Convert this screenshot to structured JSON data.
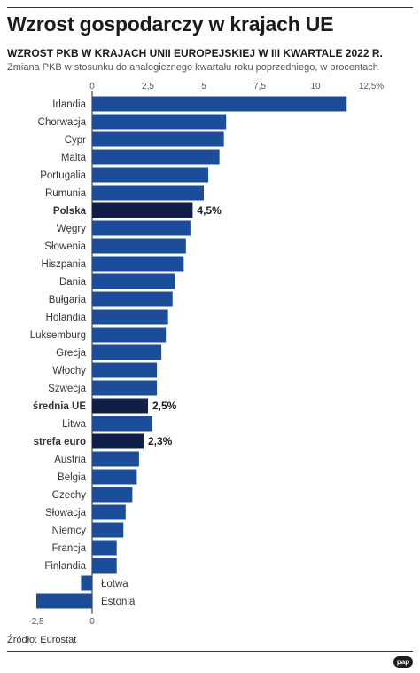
{
  "header": {
    "title": "Wzrost gospodarczy w krajach UE",
    "subtitle": "WZROST PKB W KRAJACH UNII EUROPEJSKIEJ W III KWARTALE 2022 R.",
    "description": "Zmiana PKB w stosunku do analogicznego kwartału roku poprzedniego, w procentach"
  },
  "footer": {
    "source": "Źródło: Eurostat",
    "logo": "pap"
  },
  "colors": {
    "bar": "#1c4d9a",
    "highlight": "#0f1f47",
    "axis": "#222222",
    "tick_text": "#555555"
  },
  "chart_data": {
    "type": "bar",
    "orientation": "horizontal",
    "title": "WZROST PKB W KRAJACH UNII EUROPEJSKIEJ W III KWARTALE 2022 R.",
    "xlim": [
      -2.5,
      12.5
    ],
    "x_ticks": [
      "-2,5",
      "0",
      "2,5",
      "5",
      "7,5",
      "10",
      "12,5%"
    ],
    "x_tick_values": [
      -2.5,
      0,
      2.5,
      5,
      7.5,
      10,
      12.5
    ],
    "grid": false,
    "categories": [
      "Irlandia",
      "Chorwacja",
      "Cypr",
      "Malta",
      "Portugalia",
      "Rumunia",
      "Polska",
      "Węgry",
      "Słowenia",
      "Hiszpania",
      "Dania",
      "Bułgaria",
      "Holandia",
      "Luksemburg",
      "Grecja",
      "Włochy",
      "Szwecja",
      "średnia UE",
      "Litwa",
      "strefa euro",
      "Austria",
      "Belgia",
      "Czechy",
      "Słowacja",
      "Niemcy",
      "Francja",
      "Finlandia",
      "Łotwa",
      "Estonia"
    ],
    "values": [
      11.4,
      6.0,
      5.9,
      5.7,
      5.2,
      5.0,
      4.5,
      4.4,
      4.2,
      4.1,
      3.7,
      3.6,
      3.4,
      3.3,
      3.1,
      2.9,
      2.9,
      2.5,
      2.7,
      2.3,
      2.1,
      2.0,
      1.8,
      1.5,
      1.4,
      1.1,
      1.1,
      -0.5,
      -2.5
    ],
    "highlighted": [
      "Polska",
      "średnia UE",
      "strefa euro"
    ],
    "value_labels": {
      "Polska": "4,5%",
      "średnia UE": "2,5%",
      "strefa euro": "2,3%"
    }
  }
}
